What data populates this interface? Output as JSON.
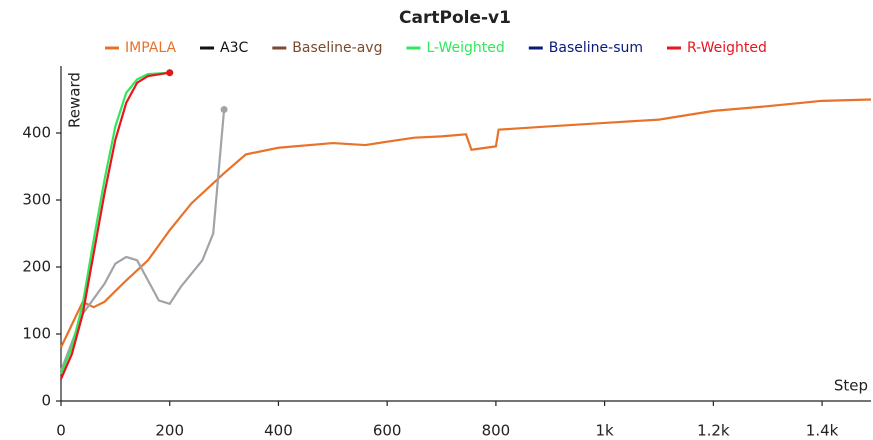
{
  "chart_data": {
    "type": "line",
    "title": "CartPole-v1",
    "x_label": "Step",
    "y_label": "Reward",
    "xlim": [
      0,
      1490
    ],
    "ylim": [
      0,
      500
    ],
    "xticks": [
      0,
      200,
      400,
      600,
      800,
      {
        "value": 1000,
        "label": "1k"
      },
      {
        "value": 1200,
        "label": "1.2k"
      },
      {
        "value": 1400,
        "label": "1.4k"
      }
    ],
    "yticks": [
      0,
      100,
      200,
      300,
      400
    ],
    "grid": false,
    "legend": "top",
    "series": [
      {
        "name": "IMPALA",
        "color": "#e8722a",
        "x": [
          0,
          40,
          60,
          80,
          120,
          160,
          200,
          240,
          300,
          340,
          400,
          500,
          560,
          600,
          650,
          700,
          745,
          755,
          800,
          805,
          900,
          1000,
          1100,
          1200,
          1300,
          1400,
          1490
        ],
        "values": [
          80,
          148,
          140,
          148,
          180,
          210,
          255,
          295,
          340,
          368,
          378,
          385,
          382,
          387,
          393,
          395,
          398,
          375,
          380,
          405,
          410,
          415,
          420,
          433,
          440,
          448,
          450
        ]
      },
      {
        "name": "A3C",
        "color": "#111111",
        "line_color": "#a0a4a8",
        "x": [
          0,
          40,
          80,
          100,
          120,
          140,
          160,
          180,
          200,
          220,
          260,
          280,
          300
        ],
        "values": [
          45,
          130,
          175,
          205,
          215,
          210,
          180,
          150,
          145,
          170,
          210,
          250,
          435
        ]
      },
      {
        "name": "Baseline-avg",
        "color": "#7b4a2e",
        "x": [],
        "values": []
      },
      {
        "name": "L-Weighted",
        "color": "#2ee85a",
        "x": [
          0,
          20,
          40,
          60,
          80,
          100,
          120,
          140,
          160,
          200
        ],
        "values": [
          40,
          80,
          145,
          240,
          330,
          410,
          460,
          480,
          488,
          490
        ]
      },
      {
        "name": "Baseline-sum",
        "color": "#0a1a7a",
        "x": [],
        "values": []
      },
      {
        "name": "R-Weighted",
        "color": "#e8141e",
        "x": [
          0,
          20,
          40,
          60,
          80,
          100,
          120,
          140,
          160,
          200
        ],
        "values": [
          33,
          70,
          130,
          220,
          310,
          390,
          445,
          475,
          485,
          490
        ]
      }
    ]
  }
}
